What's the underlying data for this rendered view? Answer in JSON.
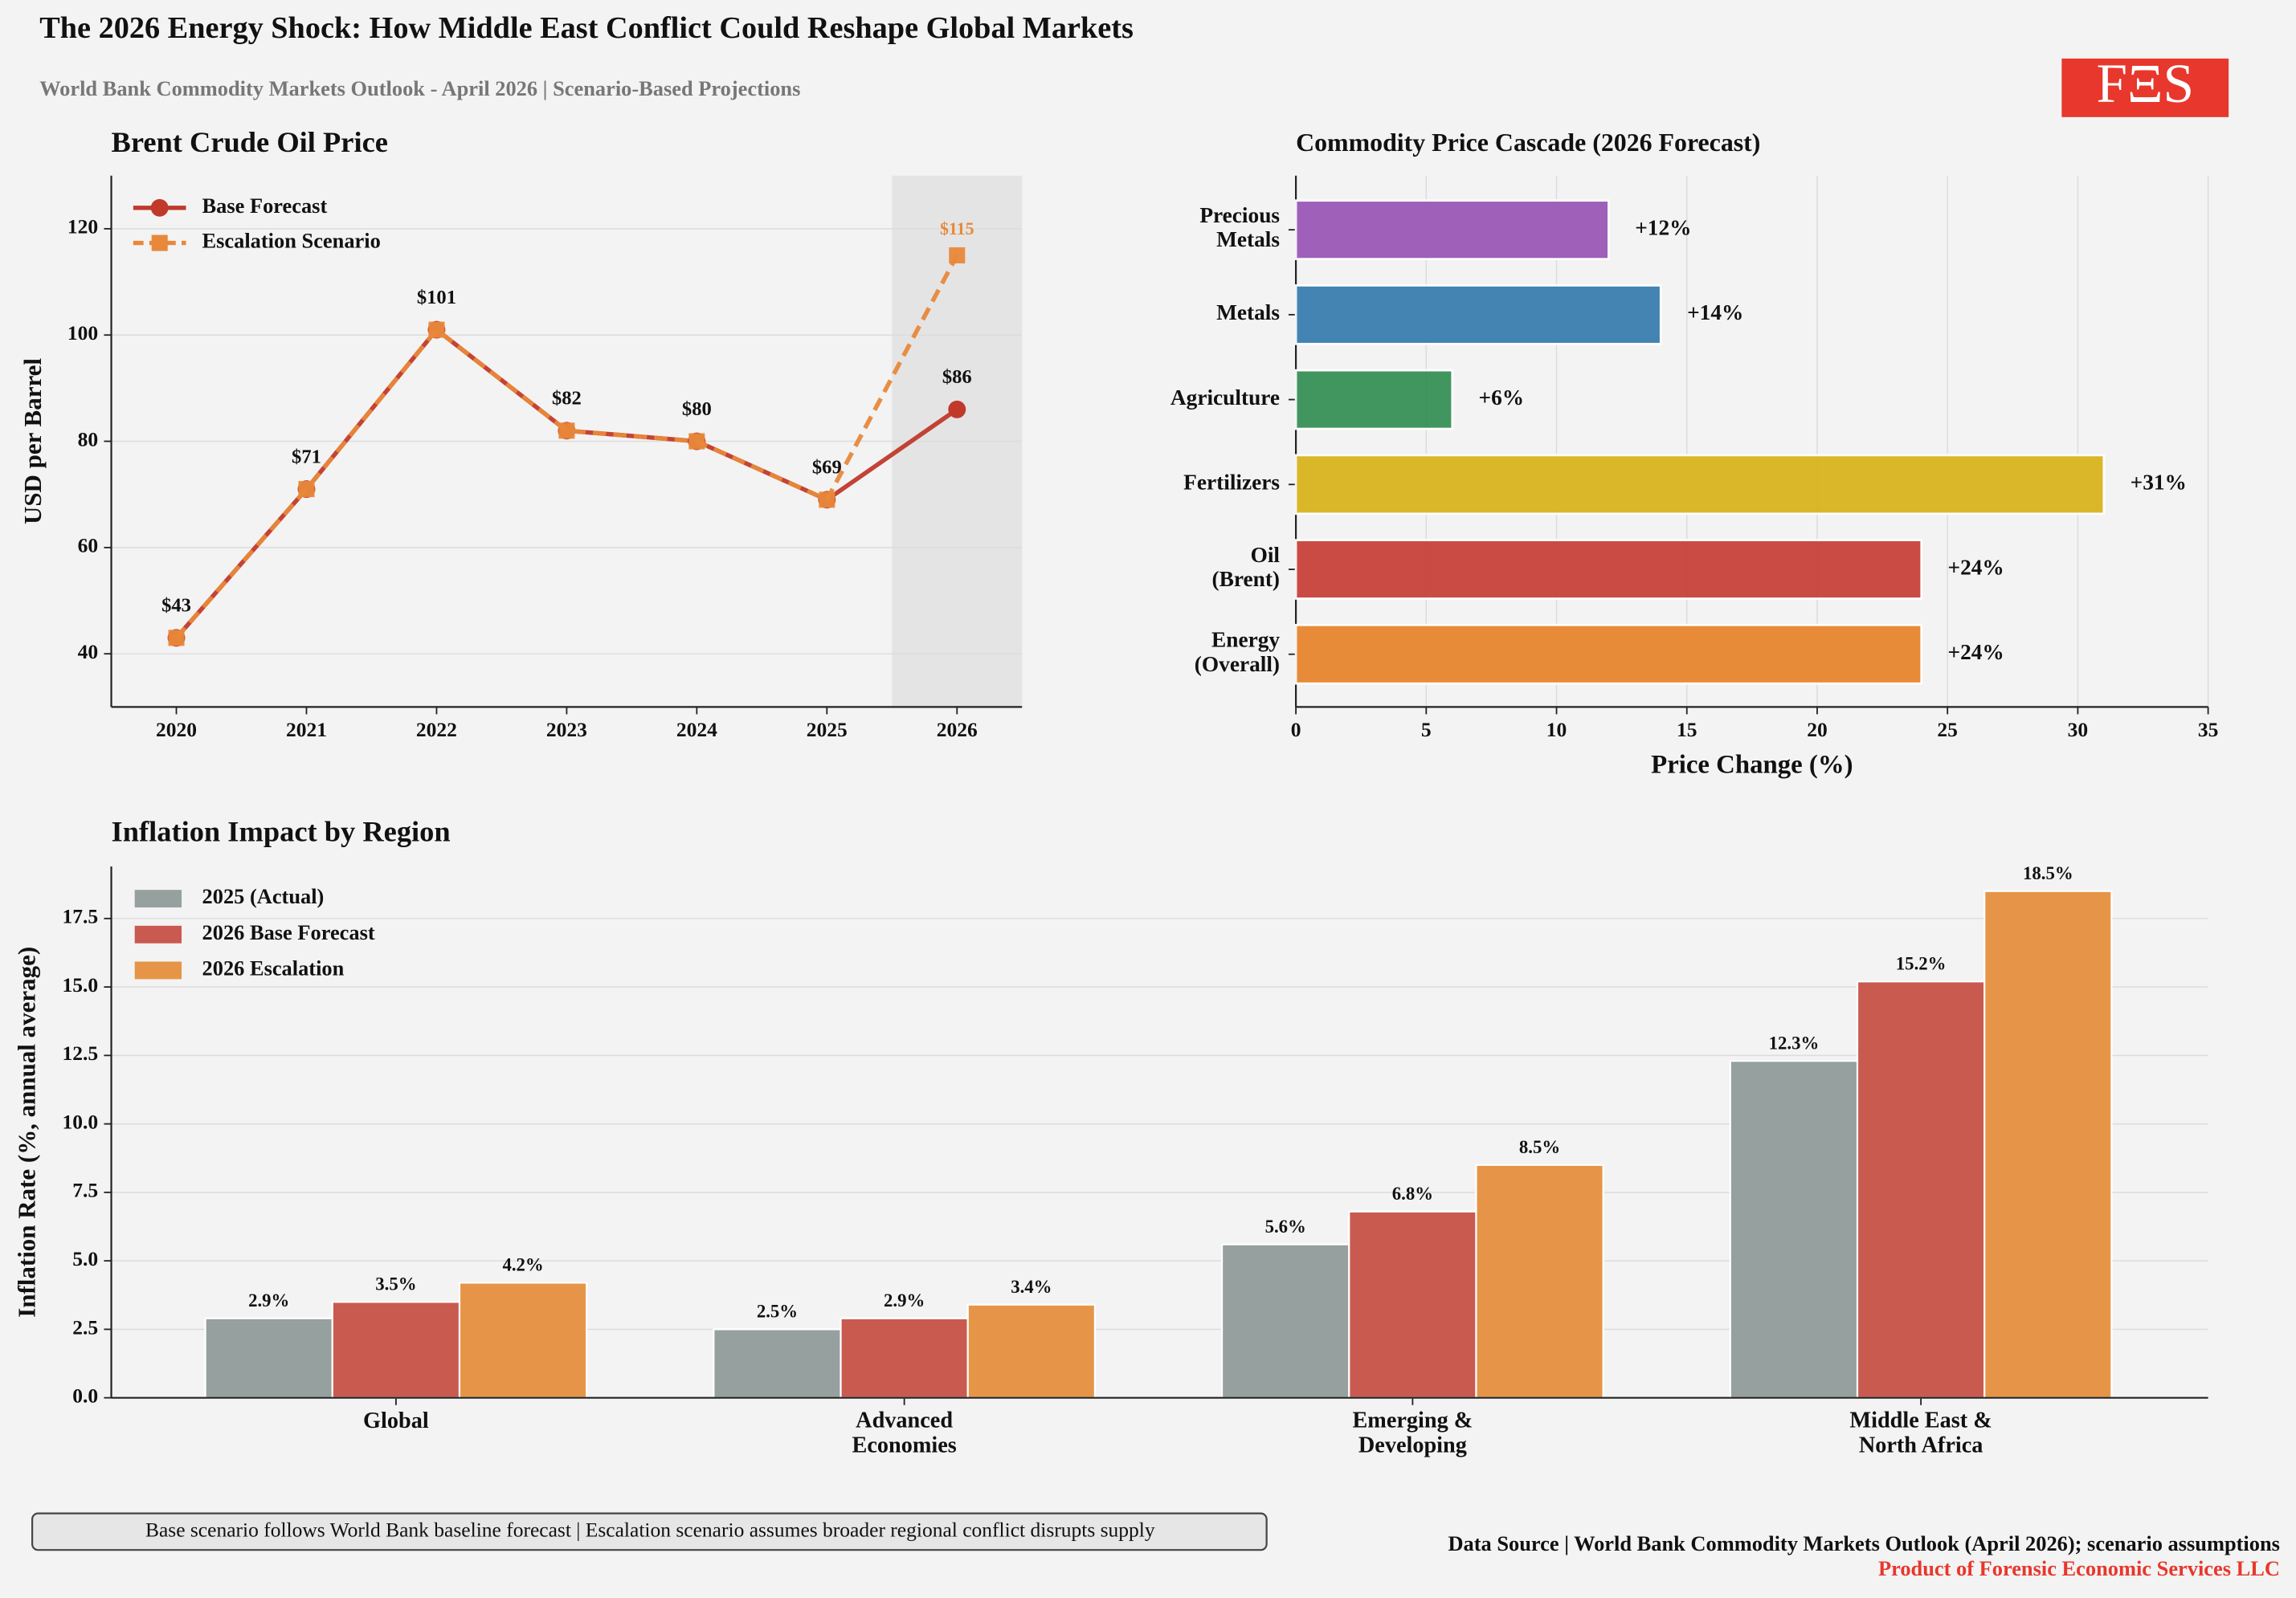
{
  "header": {
    "title": "The 2026 Energy Shock: How Middle East Conflict Could Reshape Global Markets",
    "subtitle": "World Bank Commodity Markets Outlook - April 2026 | Scenario-Based Projections",
    "logo": "FΞS"
  },
  "chart_data": [
    {
      "type": "line",
      "title": "Brent Crude Oil Price",
      "ylabel": "USD per Barrel",
      "categories": [
        "2020",
        "2021",
        "2022",
        "2023",
        "2024",
        "2025",
        "2026"
      ],
      "series": [
        {
          "name": "Base Forecast",
          "color": "#c0392b",
          "marker": "circle",
          "linestyle": "solid",
          "values": [
            43,
            71,
            101,
            82,
            80,
            69,
            86
          ],
          "value_labels": [
            "$43",
            "$71",
            "$101",
            "$82",
            "$80",
            "$69",
            "$86"
          ]
        },
        {
          "name": "Escalation Scenario",
          "color": "#e8883a",
          "marker": "square",
          "linestyle": "dashed",
          "values": [
            43,
            71,
            101,
            82,
            80,
            69,
            115
          ],
          "value_labels": [
            null,
            null,
            null,
            null,
            null,
            null,
            "$115"
          ]
        }
      ],
      "ylim": [
        30,
        130
      ],
      "yticks": [
        40,
        60,
        80,
        100,
        120
      ],
      "grid": true,
      "legend": "upper left"
    },
    {
      "type": "hbar",
      "title": "Commodity Price Cascade (2026 Forecast)",
      "xlabel": "Price Change (%)",
      "categories": [
        "Precious\nMetals",
        "Metals",
        "Agriculture",
        "Fertilizers",
        "Oil\n(Brent)",
        "Energy\n(Overall)"
      ],
      "values": [
        12,
        14,
        6,
        31,
        24,
        24
      ],
      "value_labels": [
        "+12%",
        "+14%",
        "+6%",
        "+31%",
        "+24%",
        "+24%"
      ],
      "colors": [
        "#9b59b6",
        "#3a7fb0",
        "#389058",
        "#d9b41f",
        "#c8433a",
        "#e8862f"
      ],
      "xlim": [
        0,
        35
      ],
      "xticks": [
        0,
        5,
        10,
        15,
        20,
        25,
        30,
        35
      ],
      "grid": true
    },
    {
      "type": "grouped_bar",
      "title": "Inflation Impact by Region",
      "ylabel": "Inflation Rate (%, annual average)",
      "categories": [
        "Global",
        "Advanced\nEconomies",
        "Emerging &\nDeveloping",
        "Middle East &\nNorth Africa"
      ],
      "series": [
        {
          "name": "2025 (Actual)",
          "color": "#95a09f",
          "values": [
            2.9,
            2.5,
            5.6,
            12.3
          ],
          "value_labels": [
            "2.9%",
            "2.5%",
            "5.6%",
            "12.3%"
          ]
        },
        {
          "name": "2026 Base Forecast",
          "color": "#c95a50",
          "values": [
            3.5,
            2.9,
            6.8,
            15.2
          ],
          "value_labels": [
            "3.5%",
            "2.9%",
            "6.8%",
            "15.2%"
          ]
        },
        {
          "name": "2026 Escalation",
          "color": "#e69548",
          "values": [
            4.2,
            3.4,
            8.5,
            18.5
          ],
          "value_labels": [
            "4.2%",
            "3.4%",
            "8.5%",
            "18.5%"
          ]
        }
      ],
      "ylim": [
        0,
        19.4
      ],
      "yticks": [
        {
          "value": 0,
          "label": "0.0"
        },
        2.5,
        {
          "value": 5,
          "label": "5.0"
        },
        7.5,
        {
          "value": 10,
          "label": "10.0"
        },
        12.5,
        {
          "value": 15,
          "label": "15.0"
        },
        17.5
      ],
      "grid": true,
      "legend": "upper left"
    }
  ],
  "footer": {
    "note": "Base scenario follows World Bank baseline forecast | Escalation scenario assumes broader regional conflict disrupts supply",
    "source": "Data Source | World Bank Commodity Markets Outlook (April 2026); scenario assumptions",
    "credit": "Product of Forensic Economic Services LLC"
  }
}
